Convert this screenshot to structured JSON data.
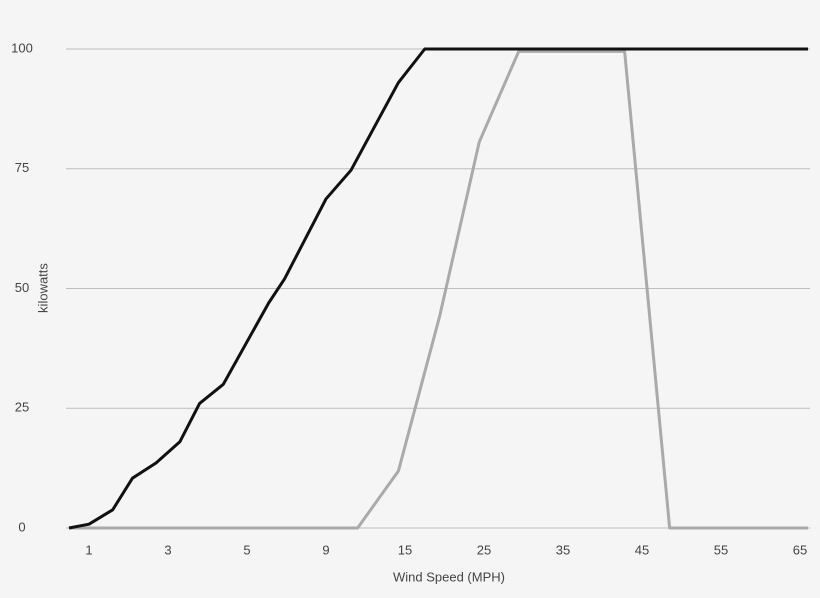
{
  "chart_data": {
    "type": "line",
    "x_label": "Wind Speed (MPH)",
    "y_label": "kilowatts",
    "xlim": [
      0,
      66
    ],
    "xticks": [
      1,
      3,
      5,
      9,
      15,
      25,
      35,
      45,
      55,
      65
    ],
    "ylim": [
      0,
      100
    ],
    "yticks": [
      0,
      25,
      50,
      75,
      100
    ],
    "grid": true,
    "series": [
      {
        "color": "#111111",
        "x": [
          0,
          1,
          1.6,
          2.1,
          2.7,
          3.3,
          3.8,
          4.4,
          6.1,
          6.9,
          9.0,
          10.9,
          14.5,
          17.5,
          66
        ],
        "values": [
          0,
          0.8,
          3.8,
          10.4,
          13.6,
          18,
          26,
          30,
          47,
          52,
          68.7,
          74.7,
          93,
          100,
          100
        ]
      },
      {
        "color": "#aaaaaa",
        "x": [
          0,
          11.4,
          14.5,
          19.4,
          24.4,
          29.4,
          42.8,
          48.5,
          66
        ],
        "values": [
          0,
          0,
          11.9,
          44.3,
          80.6,
          99.5,
          99.5,
          0,
          0
        ]
      }
    ]
  }
}
